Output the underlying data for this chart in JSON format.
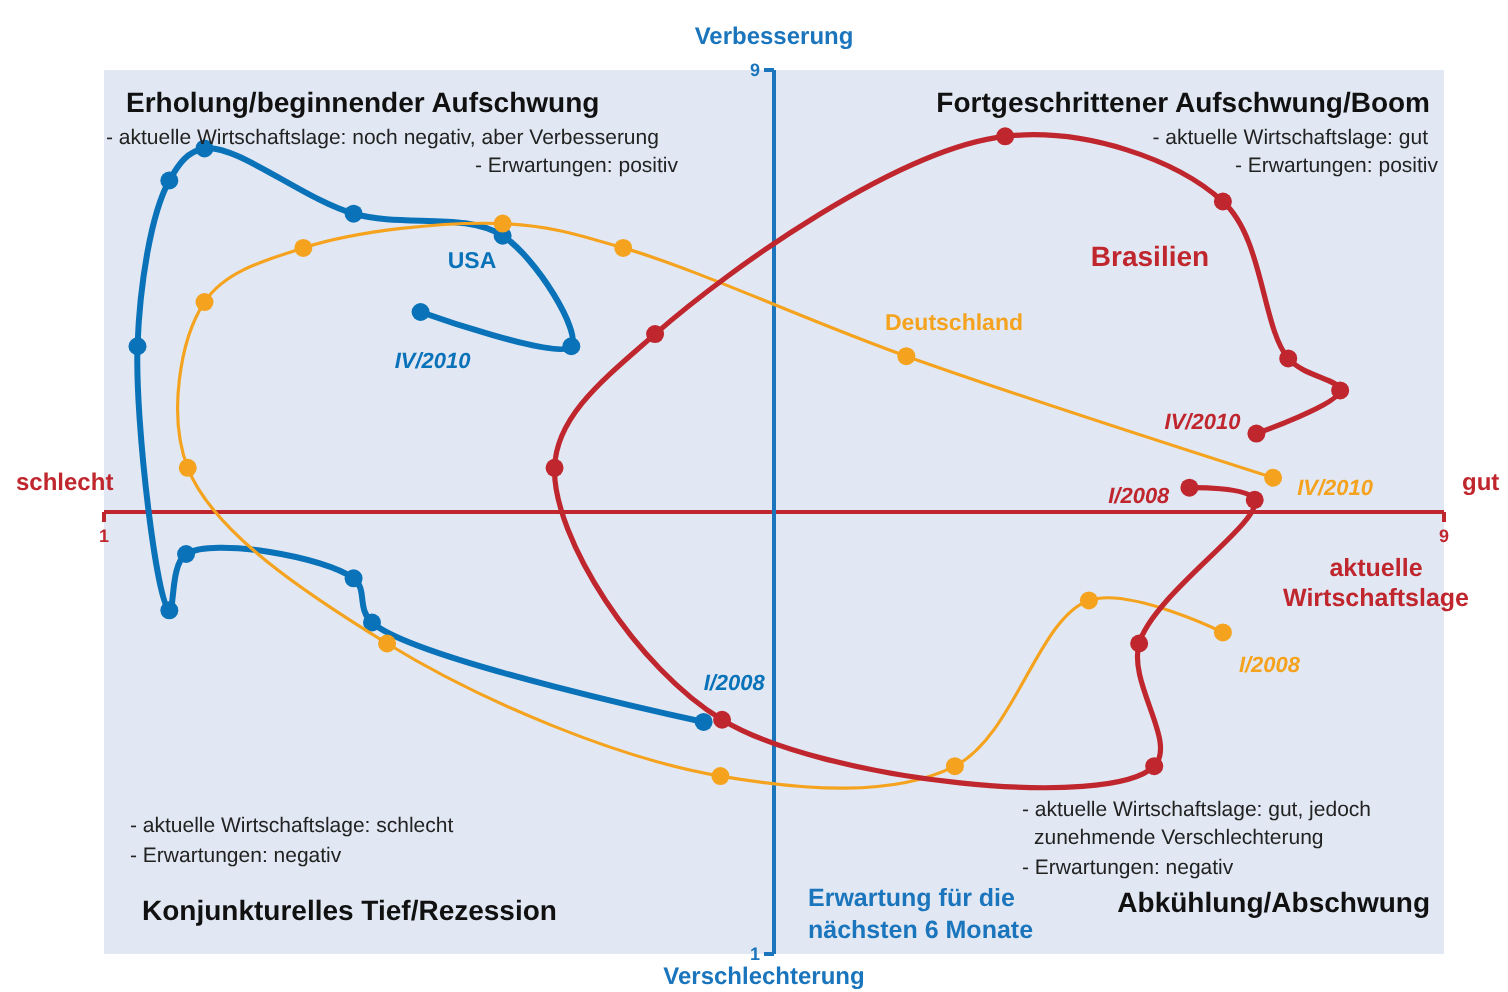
{
  "chart_data": {
    "type": "line",
    "xlabel": "aktuelle Wirtschaftslage",
    "ylabel": "Erwartung für die nächsten 6 Monate",
    "xlim": [
      1,
      9
    ],
    "ylim": [
      1,
      9
    ],
    "xticks": [
      1,
      9
    ],
    "yticks": [
      1,
      9
    ],
    "grid": false,
    "legend": false,
    "marker": "circle",
    "series": [
      {
        "name": "USA",
        "color": "#0a72b8",
        "x": [
          4.58,
          2.6,
          2.49,
          1.49,
          1.39,
          1.2,
          1.39,
          1.6,
          2.49,
          3.38,
          3.79,
          2.89
        ],
        "values": [
          3.1,
          4.0,
          4.4,
          4.62,
          4.11,
          6.5,
          8.0,
          8.29,
          7.7,
          7.5,
          6.5,
          6.81
        ]
      },
      {
        "name": "Deutschland",
        "color": "#f5a31f",
        "x": [
          7.68,
          6.88,
          6.08,
          4.68,
          2.69,
          1.5,
          1.6,
          2.19,
          3.38,
          4.1,
          5.79,
          7.98
        ],
        "values": [
          3.91,
          4.2,
          2.7,
          2.61,
          3.81,
          5.4,
          6.9,
          7.39,
          7.61,
          7.39,
          6.41,
          5.31
        ]
      },
      {
        "name": "Brasilien",
        "color": "#c0262d",
        "x": [
          7.48,
          7.87,
          7.18,
          7.27,
          4.69,
          3.69,
          4.29,
          6.38,
          7.68,
          8.07,
          8.38,
          7.88
        ],
        "values": [
          5.22,
          5.11,
          3.81,
          2.7,
          3.12,
          5.4,
          6.61,
          8.4,
          7.81,
          6.39,
          6.1,
          5.71
        ]
      }
    ],
    "annotations": [
      "Verbesserung",
      "Verschlechterung",
      "schlecht",
      "gut",
      "Erholung/beginnender Aufschwung",
      "- aktuelle Wirtschaftslage: noch negativ, aber Verbesserung",
      "- Erwartungen: positiv",
      "Fortgeschrittener Aufschwung/Boom",
      "- aktuelle Wirtschaftslage: gut",
      "- Erwartungen: positiv",
      "- aktuelle Wirtschaftslage: schlecht",
      "- Erwartungen: negativ",
      "Konjunkturelles Tief/Rezession",
      "- aktuelle Wirtschaftslage: gut, jedoch",
      "zunehmende Verschlechterung",
      "- Erwartungen: negativ",
      "Abkühlung/Abschwung",
      {
        "text": "I/2008",
        "x": 4.58,
        "y": 3.1
      },
      {
        "text": "IV/2010",
        "x": 2.89,
        "y": 6.81
      },
      {
        "text": "I/2008",
        "x": 7.68,
        "y": 3.91
      },
      {
        "text": "IV/2010",
        "x": 7.98,
        "y": 5.31
      },
      {
        "text": "I/2008",
        "x": 7.48,
        "y": 5.22
      },
      {
        "text": "IV/2010",
        "x": 7.88,
        "y": 5.71
      }
    ]
  }
}
